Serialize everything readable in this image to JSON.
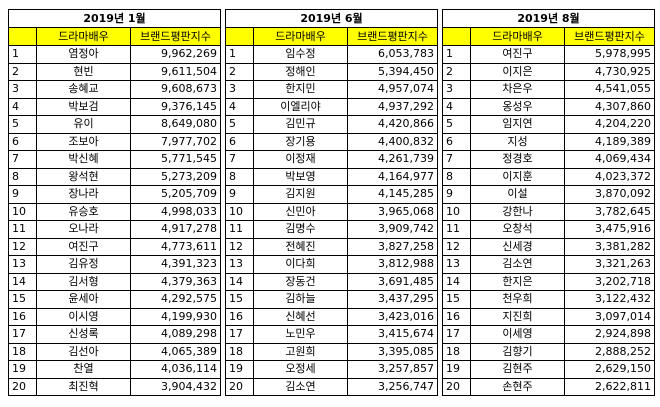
{
  "tables": [
    {
      "title": "2019년 1월",
      "headers": [
        "드라마배우",
        "브랜드평판지수"
      ],
      "rows": [
        [
          1,
          "염정아",
          "9,962,269"
        ],
        [
          2,
          "현빈",
          "9,611,504"
        ],
        [
          3,
          "송혜교",
          "9,608,673"
        ],
        [
          4,
          "박보검",
          "9,376,145"
        ],
        [
          5,
          "유이",
          "8,649,080"
        ],
        [
          6,
          "조보아",
          "7,977,702"
        ],
        [
          7,
          "박신혜",
          "5,771,545"
        ],
        [
          8,
          "왕석현",
          "5,273,209"
        ],
        [
          9,
          "장나라",
          "5,205,709"
        ],
        [
          10,
          "유승호",
          "4,998,033"
        ],
        [
          11,
          "오나라",
          "4,917,278"
        ],
        [
          12,
          "여진구",
          "4,773,611"
        ],
        [
          13,
          "김유정",
          "4,391,323"
        ],
        [
          14,
          "김서형",
          "4,379,363"
        ],
        [
          15,
          "윤세아",
          "4,292,575"
        ],
        [
          16,
          "이시영",
          "4,199,930"
        ],
        [
          17,
          "신성록",
          "4,089,298"
        ],
        [
          18,
          "김선아",
          "4,065,389"
        ],
        [
          19,
          "찬열",
          "4,036,114"
        ],
        [
          20,
          "최진혁",
          "3,904,432"
        ]
      ]
    },
    {
      "title": "2019년 6월",
      "headers": [
        "드라마배우",
        "브랜드평판지수"
      ],
      "rows": [
        [
          1,
          "임수정",
          "6,053,783"
        ],
        [
          2,
          "정해인",
          "5,394,450"
        ],
        [
          3,
          "한지민",
          "4,957,074"
        ],
        [
          4,
          "이엘리야",
          "4,937,292"
        ],
        [
          5,
          "김민규",
          "4,420,866"
        ],
        [
          6,
          "장기용",
          "4,400,832"
        ],
        [
          7,
          "이정재",
          "4,261,739"
        ],
        [
          8,
          "박보영",
          "4,164,977"
        ],
        [
          9,
          "김지원",
          "4,145,285"
        ],
        [
          10,
          "신민아",
          "3,965,068"
        ],
        [
          11,
          "김명수",
          "3,909,742"
        ],
        [
          12,
          "전혜진",
          "3,827,258"
        ],
        [
          13,
          "이다희",
          "3,812,988"
        ],
        [
          14,
          "장동건",
          "3,691,485"
        ],
        [
          15,
          "김하늘",
          "3,437,295"
        ],
        [
          16,
          "신혜선",
          "3,423,016"
        ],
        [
          17,
          "노민우",
          "3,415,674"
        ],
        [
          18,
          "고원희",
          "3,395,085"
        ],
        [
          19,
          "오정세",
          "3,257,857"
        ],
        [
          20,
          "김소연",
          "3,256,747"
        ]
      ]
    },
    {
      "title": "2019년 8월",
      "headers": [
        "드라마배우",
        "브랜드평판지수"
      ],
      "rows": [
        [
          1,
          "여진구",
          "5,978,995"
        ],
        [
          2,
          "이지은",
          "4,730,925"
        ],
        [
          3,
          "차은우",
          "4,541,055"
        ],
        [
          4,
          "옹성우",
          "4,307,860"
        ],
        [
          5,
          "임지연",
          "4,204,220"
        ],
        [
          6,
          "지성",
          "4,189,389"
        ],
        [
          7,
          "정경호",
          "4,069,434"
        ],
        [
          8,
          "이지훈",
          "4,023,372"
        ],
        [
          9,
          "이설",
          "3,870,092"
        ],
        [
          10,
          "강한나",
          "3,782,645"
        ],
        [
          11,
          "오창석",
          "3,475,916"
        ],
        [
          12,
          "신세경",
          "3,381,282"
        ],
        [
          13,
          "김소연",
          "3,321,263"
        ],
        [
          14,
          "한지은",
          "3,202,718"
        ],
        [
          15,
          "천우희",
          "3,122,432"
        ],
        [
          16,
          "지진희",
          "3,097,014"
        ],
        [
          17,
          "이세영",
          "2,924,898"
        ],
        [
          18,
          "김향기",
          "2,888,252"
        ],
        [
          19,
          "김현주",
          "2,629,150"
        ],
        [
          20,
          "손현주",
          "2,622,811"
        ]
      ]
    }
  ]
}
